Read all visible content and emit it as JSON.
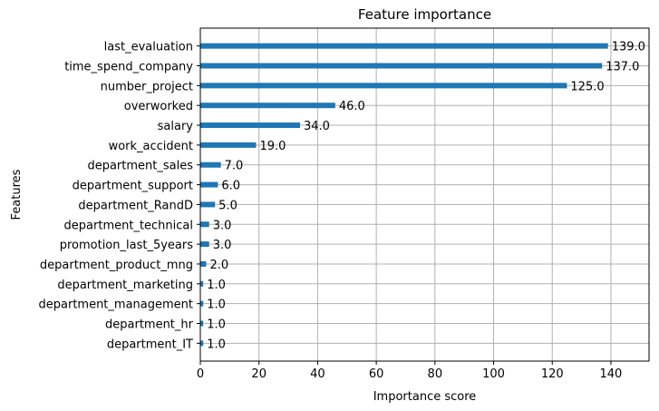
{
  "chart_data": {
    "type": "bar",
    "orientation": "horizontal",
    "title": "Feature importance",
    "xlabel": "Importance score",
    "ylabel": "Features",
    "xlim": [
      0,
      153
    ],
    "xticks": [
      0,
      20,
      40,
      60,
      80,
      100,
      120,
      140
    ],
    "grid": true,
    "bar_color": "#1f77b4",
    "categories": [
      "last_evaluation",
      "time_spend_company",
      "number_project",
      "overworked",
      "salary",
      "work_accident",
      "department_sales",
      "department_support",
      "department_RandD",
      "department_technical",
      "promotion_last_5years",
      "department_product_mng",
      "department_marketing",
      "department_management",
      "department_hr",
      "department_IT"
    ],
    "values": [
      139,
      137,
      125,
      46,
      34,
      19,
      7,
      6,
      5,
      3,
      3,
      2,
      1,
      1,
      1,
      1
    ],
    "value_labels": [
      "139.0",
      "137.0",
      "125.0",
      "46.0",
      "34.0",
      "19.0",
      "7.0",
      "6.0",
      "5.0",
      "3.0",
      "3.0",
      "2.0",
      "1.0",
      "1.0",
      "1.0",
      "1.0"
    ]
  }
}
